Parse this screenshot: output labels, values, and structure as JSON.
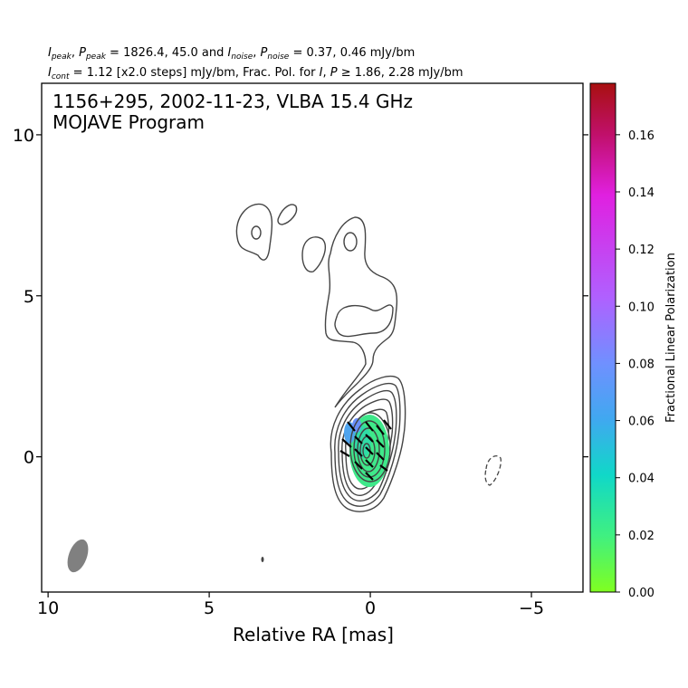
{
  "header": {
    "line1_html": "<tspan font-style=\"italic\">I</tspan><tspan font-size=\"9\" dy=\"3\" font-style=\"italic\">peak</tspan><tspan dy=\"-3\">, </tspan><tspan font-style=\"italic\">P</tspan><tspan font-size=\"9\" dy=\"3\" font-style=\"italic\">peak</tspan><tspan dy=\"-3\"> = 1826.4, 45.0 and </tspan><tspan font-style=\"italic\">I</tspan><tspan font-size=\"9\" dy=\"3\" font-style=\"italic\">noise</tspan><tspan dy=\"-3\">, </tspan><tspan font-style=\"italic\">P</tspan><tspan font-size=\"9\" dy=\"3\" font-style=\"italic\">noise</tspan><tspan dy=\"-3\"> = 0.37, 0.46 mJy/bm</tspan>",
    "line2_html": "<tspan font-style=\"italic\">I</tspan><tspan font-size=\"9\" dy=\"3\" font-style=\"italic\">cont</tspan><tspan dy=\"-3\"> = 1.12 [x2.0 steps] mJy/bm, Frac. Pol. for </tspan><tspan font-style=\"italic\">I</tspan><tspan>, </tspan><tspan font-style=\"italic\">P</tspan><tspan> ≥ 1.86, 2.28 mJy/bm</tspan>",
    "line1": "Ipeak, Ppeak = 1826.4, 45.0 and Inoise, Pnoise = 0.37, 0.46 mJy/bm",
    "line2": "Icont = 1.12 [x2.0 steps] mJy/bm, Frac. Pol. for I, P ≥ 1.86, 2.28 mJy/bm"
  },
  "chart_data": {
    "type": "contour",
    "title_line1": "1156+295, 2002-11-23, VLBA 15.4 GHz",
    "title_line2": "MOJAVE Program",
    "xlabel": "Relative RA [mas]",
    "ylabel": "",
    "xlim": [
      10.2,
      -6.6
    ],
    "ylim": [
      -4.2,
      11.6
    ],
    "x_ticks": [
      10,
      5,
      0,
      -5
    ],
    "x_tick_labels": [
      "10",
      "5",
      "0",
      "−5"
    ],
    "y_ticks": [
      10,
      5,
      0
    ],
    "y_tick_labels": [
      "10",
      "5",
      "0"
    ],
    "colorbar": {
      "label": "Fractional Linear Polarization",
      "range": [
        0.0,
        0.178
      ],
      "ticks": [
        0.0,
        0.02,
        0.04,
        0.06,
        0.08,
        0.1,
        0.12,
        0.14,
        0.16
      ],
      "tick_labels": [
        "0.00",
        "0.02",
        "0.04",
        "0.06",
        "0.08",
        "0.10",
        "0.12",
        "0.14",
        "0.16"
      ],
      "colors": [
        "#80ff20",
        "#40f080",
        "#10d8c8",
        "#40a8f0",
        "#7090ff",
        "#b060ff",
        "#e020e0",
        "#c0106a",
        "#a81010"
      ]
    },
    "core": {
      "ra": 0.0,
      "dec": 0.0
    },
    "beam": {
      "ra": 9.0,
      "dec": -3.1
    },
    "negative_contour": {
      "ra": -3.9,
      "dec": -0.4
    }
  }
}
